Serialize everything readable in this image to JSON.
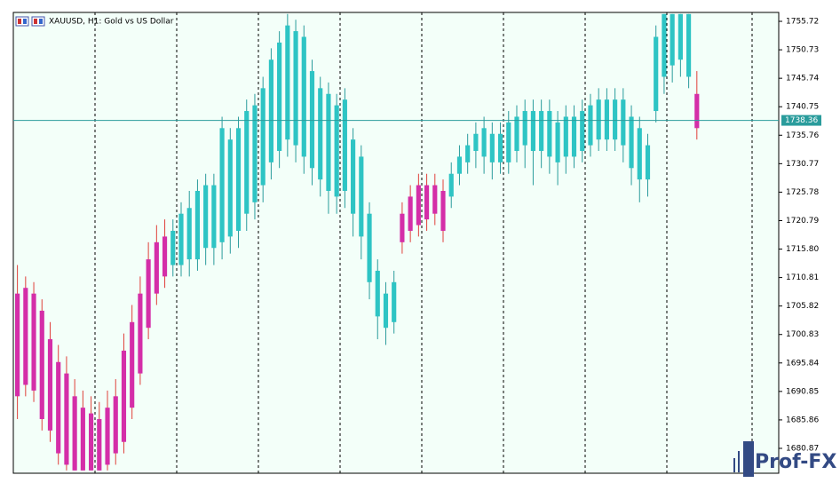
{
  "chart_data": {
    "type": "candlestick",
    "title": "XAUUSD, H1:  Gold vs US Dollar",
    "watermark": "Prof-FX",
    "up_color": "#2ec4c4",
    "down_color": "#d42ea8",
    "open": [
      1708,
      1709,
      1708,
      1705,
      1700,
      1696,
      1694,
      1690,
      1688,
      1687,
      1686,
      1688,
      1690,
      1698,
      1703,
      1708,
      1714,
      1717,
      1718,
      1713,
      1713,
      1714,
      1714,
      1716,
      1716,
      1717,
      1718,
      1719,
      1722,
      1724,
      1727,
      1731,
      1733,
      1735,
      1734,
      1732,
      1730,
      1728,
      1726,
      1725,
      1726,
      1722,
      1718,
      1710,
      1704,
      1702,
      1703,
      1722,
      1725,
      1727,
      1727,
      1727,
      1726,
      1725,
      1729,
      1731,
      1733,
      1732,
      1731,
      1731,
      1731,
      1733,
      1734,
      1733,
      1733,
      1732,
      1731,
      1732,
      1732,
      1733,
      1734,
      1735,
      1735,
      1735,
      1734,
      1730,
      1728,
      1728,
      1740,
      1746,
      1748,
      1749,
      1746,
      1743
    ],
    "high": [
      1713,
      1711,
      1710,
      1707,
      1703,
      1699,
      1697,
      1693,
      1691,
      1690,
      1689,
      1691,
      1693,
      1701,
      1706,
      1711,
      1717,
      1720,
      1721,
      1721,
      1724,
      1726,
      1728,
      1729,
      1729,
      1739,
      1737,
      1739,
      1742,
      1743,
      1746,
      1751,
      1754,
      1757,
      1756,
      1755,
      1749,
      1746,
      1745,
      1743,
      1744,
      1737,
      1734,
      1724,
      1714,
      1710,
      1712,
      1724,
      1727,
      1729,
      1729,
      1729,
      1728,
      1731,
      1734,
      1736,
      1738,
      1739,
      1738,
      1738,
      1740,
      1741,
      1742,
      1742,
      1742,
      1742,
      1740,
      1741,
      1741,
      1742,
      1743,
      1744,
      1744,
      1744,
      1744,
      1741,
      1739,
      1736,
      1755,
      1757,
      1757,
      1757,
      1757,
      1747
    ],
    "low": [
      1686,
      1690,
      1689,
      1684,
      1682,
      1678,
      1677,
      1677,
      1677,
      1677,
      1677,
      1677,
      1678,
      1680,
      1686,
      1692,
      1700,
      1706,
      1709,
      1711,
      1711,
      1711,
      1712,
      1713,
      1713,
      1714,
      1715,
      1716,
      1719,
      1721,
      1724,
      1728,
      1730,
      1732,
      1731,
      1729,
      1727,
      1725,
      1722,
      1722,
      1723,
      1718,
      1714,
      1707,
      1700,
      1699,
      1701,
      1715,
      1717,
      1718,
      1719,
      1720,
      1717,
      1723,
      1727,
      1729,
      1730,
      1729,
      1728,
      1729,
      1729,
      1731,
      1730,
      1727,
      1730,
      1729,
      1727,
      1729,
      1730,
      1731,
      1732,
      1733,
      1733,
      1733,
      1731,
      1727,
      1724,
      1725,
      1738,
      1743,
      1745,
      1746,
      1744,
      1735
    ],
    "close": [
      1690,
      1692,
      1691,
      1686,
      1684,
      1680,
      1678,
      1677,
      1677,
      1677,
      1677,
      1678,
      1680,
      1682,
      1688,
      1694,
      1702,
      1708,
      1711,
      1719,
      1722,
      1723,
      1726,
      1727,
      1727,
      1737,
      1735,
      1737,
      1740,
      1741,
      1744,
      1749,
      1752,
      1755,
      1754,
      1753,
      1747,
      1744,
      1743,
      1741,
      1742,
      1735,
      1732,
      1722,
      1712,
      1708,
      1710,
      1717,
      1719,
      1720,
      1721,
      1722,
      1719,
      1729,
      1732,
      1734,
      1736,
      1737,
      1736,
      1736,
      1738,
      1739,
      1740,
      1740,
      1740,
      1740,
      1738,
      1739,
      1739,
      1740,
      1741,
      1742,
      1742,
      1742,
      1742,
      1739,
      1737,
      1734,
      1753,
      1757,
      1757,
      1757,
      1757,
      1737
    ],
    "last_price": 1738.36,
    "ylim": [
      1676.51,
      1757.28
    ],
    "yticks": [
      1755.72,
      1750.73,
      1745.74,
      1740.75,
      1735.76,
      1730.77,
      1725.78,
      1720.79,
      {
        "value": 1715.8,
        "label": "1715.80"
      },
      1710.81,
      1705.82,
      1700.83,
      1695.84,
      1690.85,
      1685.86,
      1680.87
    ]
  }
}
